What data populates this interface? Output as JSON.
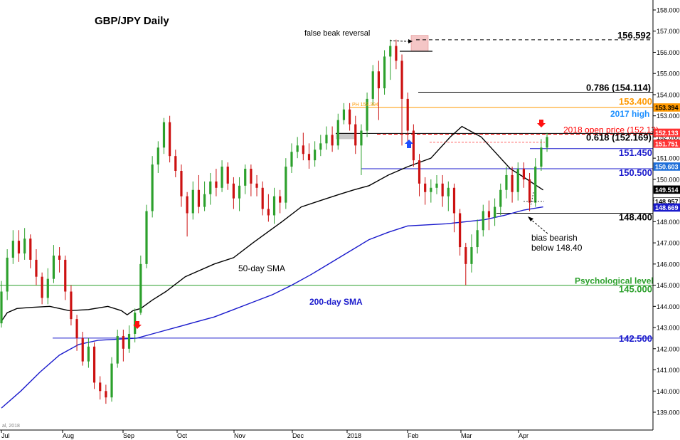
{
  "chart_data": {
    "type": "candlestick",
    "title": "GBP/JPY Daily",
    "x_tick_labels": [
      "Jul",
      "Aug",
      "Sep",
      "Oct",
      "Nov",
      "Dec",
      "2018",
      "Feb",
      "Mar",
      "Apr"
    ],
    "y_tick_labels": [
      "139.000",
      "140.000",
      "141.000",
      "142.000",
      "143.000",
      "144.000",
      "145.000",
      "146.000",
      "147.000",
      "148.000",
      "149.000",
      "150.000",
      "151.000",
      "152.000",
      "153.000",
      "154.000",
      "155.000",
      "156.000",
      "157.000",
      "158.000"
    ],
    "ylim": [
      138.0,
      158.4
    ],
    "series": [
      {
        "name": "50-day SMA",
        "color": "#000000",
        "points": [
          [
            0,
            143.3
          ],
          [
            3,
            143.7
          ],
          [
            8,
            143.9
          ],
          [
            15,
            143.95
          ],
          [
            25,
            144.0
          ],
          [
            35,
            143.8
          ],
          [
            45,
            143.85
          ],
          [
            55,
            144.0
          ],
          [
            62,
            143.8
          ],
          [
            65,
            143.6
          ],
          [
            68,
            143.8
          ],
          [
            72,
            143.9
          ],
          [
            78,
            144.3
          ],
          [
            85,
            144.7
          ],
          [
            95,
            145.4
          ],
          [
            110,
            146.0
          ],
          [
            120,
            146.3
          ],
          [
            130,
            147.0
          ],
          [
            145,
            148.0
          ],
          [
            155,
            148.7
          ],
          [
            165,
            149.0
          ],
          [
            175,
            149.3
          ],
          [
            182,
            149.5
          ],
          [
            190,
            149.7
          ],
          [
            200,
            150.2
          ],
          [
            210,
            150.6
          ],
          [
            222,
            151.0
          ],
          [
            232,
            152.0
          ],
          [
            238,
            152.5
          ],
          [
            242,
            152.3
          ],
          [
            248,
            152.0
          ],
          [
            255,
            151.3
          ],
          [
            263,
            150.5
          ],
          [
            270,
            150.1
          ],
          [
            280,
            149.5
          ]
        ]
      },
      {
        "name": "200-day SMA",
        "color": "#1a1acc",
        "points": [
          [
            0,
            139.2
          ],
          [
            10,
            140.0
          ],
          [
            20,
            140.9
          ],
          [
            30,
            141.7
          ],
          [
            40,
            142.2
          ],
          [
            50,
            142.4
          ],
          [
            60,
            142.45
          ],
          [
            70,
            142.5
          ],
          [
            80,
            142.75
          ],
          [
            90,
            143.0
          ],
          [
            100,
            143.25
          ],
          [
            110,
            143.5
          ],
          [
            120,
            143.85
          ],
          [
            130,
            144.2
          ],
          [
            140,
            144.55
          ],
          [
            150,
            145.0
          ],
          [
            160,
            145.5
          ],
          [
            170,
            146.05
          ],
          [
            180,
            146.6
          ],
          [
            190,
            147.15
          ],
          [
            200,
            147.5
          ],
          [
            210,
            147.8
          ],
          [
            220,
            147.85
          ],
          [
            230,
            147.9
          ],
          [
            240,
            148.0
          ],
          [
            250,
            148.1
          ],
          [
            260,
            148.3
          ],
          [
            270,
            148.55
          ],
          [
            280,
            148.7
          ]
        ]
      }
    ],
    "candles_approx": [
      [
        0,
        143.2,
        144.7,
        145.2,
        143.0
      ],
      [
        3,
        144.7,
        146.3,
        146.7,
        144.3
      ],
      [
        6,
        146.3,
        147.1,
        147.6,
        146.0
      ],
      [
        9,
        147.1,
        146.5,
        147.6,
        146.1
      ],
      [
        12,
        146.5,
        147.2,
        147.7,
        146.2
      ],
      [
        15,
        147.2,
        146.2,
        147.4,
        145.8
      ],
      [
        18,
        146.2,
        145.4,
        146.7,
        145.0
      ],
      [
        21,
        145.4,
        144.4,
        145.6,
        144.1
      ],
      [
        24,
        144.4,
        145.3,
        145.8,
        144.1
      ],
      [
        27,
        145.3,
        146.4,
        146.9,
        145.1
      ],
      [
        30,
        146.4,
        146.2,
        146.8,
        145.6
      ],
      [
        33,
        146.2,
        144.7,
        146.4,
        144.3
      ],
      [
        36,
        144.7,
        143.4,
        145.0,
        143.1
      ],
      [
        39,
        143.4,
        142.5,
        143.6,
        141.9
      ],
      [
        42,
        142.5,
        141.4,
        142.8,
        141.2
      ],
      [
        45,
        141.4,
        142.1,
        142.5,
        141.1
      ],
      [
        48,
        142.1,
        140.4,
        142.3,
        140.1
      ],
      [
        51,
        140.4,
        140.0,
        140.7,
        139.6
      ],
      [
        54,
        140.0,
        139.7,
        140.3,
        139.4
      ],
      [
        57,
        139.7,
        141.3,
        141.6,
        139.5
      ],
      [
        60,
        141.3,
        142.6,
        142.9,
        141.1
      ],
      [
        63,
        142.6,
        142.0,
        142.9,
        141.4
      ],
      [
        66,
        142.0,
        142.7,
        143.1,
        141.8
      ],
      [
        69,
        142.7,
        143.7,
        143.9,
        142.3
      ],
      [
        72,
        143.7,
        146.0,
        146.4,
        143.6
      ],
      [
        75,
        146.0,
        148.5,
        148.8,
        145.8
      ],
      [
        78,
        148.5,
        150.7,
        151.1,
        148.2
      ],
      [
        81,
        150.7,
        151.5,
        151.8,
        150.3
      ],
      [
        84,
        151.5,
        152.7,
        152.9,
        151.2
      ],
      [
        87,
        152.7,
        151.1,
        153.0,
        150.8
      ],
      [
        90,
        151.1,
        150.4,
        151.4,
        150.1
      ],
      [
        93,
        150.4,
        149.2,
        150.7,
        148.7
      ],
      [
        96,
        149.2,
        148.4,
        149.4,
        147.3
      ],
      [
        99,
        148.4,
        149.5,
        149.9,
        148.1
      ],
      [
        102,
        149.5,
        148.7,
        150.2,
        148.4
      ],
      [
        105,
        148.7,
        149.3,
        149.9,
        148.5
      ],
      [
        108,
        149.3,
        149.9,
        150.3,
        148.8
      ],
      [
        111,
        149.9,
        149.6,
        150.5,
        149.2
      ],
      [
        114,
        149.6,
        150.6,
        150.9,
        149.4
      ],
      [
        117,
        150.6,
        149.8,
        150.8,
        149.5
      ],
      [
        120,
        149.8,
        149.1,
        150.1,
        148.6
      ],
      [
        123,
        149.1,
        149.7,
        150.1,
        148.5
      ],
      [
        126,
        149.7,
        150.5,
        150.7,
        149.3
      ],
      [
        129,
        150.5,
        149.8,
        150.7,
        149.2
      ],
      [
        132,
        149.8,
        149.6,
        150.2,
        149.2
      ],
      [
        135,
        149.6,
        148.6,
        149.9,
        148.3
      ],
      [
        138,
        148.6,
        148.3,
        149.3,
        148.0
      ],
      [
        141,
        148.3,
        149.2,
        149.6,
        147.9
      ],
      [
        144,
        149.2,
        148.9,
        149.5,
        148.4
      ],
      [
        147,
        148.9,
        150.6,
        151.0,
        148.6
      ],
      [
        150,
        150.6,
        151.3,
        151.7,
        150.3
      ],
      [
        153,
        151.3,
        151.6,
        152.0,
        151.0
      ],
      [
        156,
        151.6,
        151.2,
        152.2,
        150.9
      ],
      [
        159,
        151.2,
        150.9,
        151.7,
        150.5
      ],
      [
        162,
        150.9,
        151.4,
        151.8,
        150.6
      ],
      [
        165,
        151.4,
        151.7,
        152.1,
        151.1
      ],
      [
        168,
        151.7,
        152.1,
        152.5,
        151.4
      ],
      [
        171,
        152.1,
        151.6,
        152.5,
        151.3
      ],
      [
        174,
        151.6,
        152.8,
        153.1,
        151.4
      ],
      [
        177,
        152.8,
        153.3,
        153.6,
        152.6
      ],
      [
        180,
        153.3,
        152.6,
        153.6,
        152.3
      ],
      [
        183,
        152.6,
        151.6,
        153.0,
        151.2
      ],
      [
        186,
        151.6,
        152.3,
        152.6,
        150.2
      ],
      [
        189,
        152.3,
        153.8,
        154.1,
        152.0
      ],
      [
        192,
        153.8,
        155.1,
        155.4,
        153.5
      ],
      [
        195,
        155.1,
        154.3,
        155.6,
        152.8
      ],
      [
        198,
        154.3,
        155.8,
        156.1,
        154.0
      ],
      [
        201,
        155.8,
        156.3,
        156.6,
        154.7
      ],
      [
        204,
        156.3,
        155.6,
        156.6,
        155.2
      ],
      [
        207,
        155.6,
        153.8,
        155.9,
        151.6
      ],
      [
        210,
        153.8,
        152.3,
        154.1,
        151.8
      ],
      [
        213,
        152.3,
        150.9,
        152.6,
        150.6
      ],
      [
        216,
        150.9,
        149.8,
        151.2,
        149.2
      ],
      [
        219,
        149.8,
        149.4,
        150.1,
        148.8
      ],
      [
        222,
        149.4,
        149.6,
        150.0,
        148.9
      ],
      [
        225,
        149.6,
        149.8,
        150.2,
        149.3
      ],
      [
        228,
        149.8,
        149.2,
        150.2,
        148.7
      ],
      [
        231,
        149.2,
        149.6,
        149.9,
        148.5
      ],
      [
        234,
        149.6,
        148.4,
        149.8,
        147.5
      ],
      [
        237,
        148.4,
        146.8,
        148.6,
        146.4
      ],
      [
        240,
        146.8,
        146.0,
        147.0,
        145.0
      ],
      [
        243,
        146.0,
        146.8,
        147.4,
        145.6
      ],
      [
        246,
        146.8,
        147.6,
        148.1,
        146.5
      ],
      [
        249,
        147.6,
        148.5,
        148.8,
        147.3
      ],
      [
        252,
        148.5,
        148.2,
        149.0,
        147.6
      ],
      [
        255,
        148.2,
        148.7,
        149.1,
        147.8
      ],
      [
        258,
        148.7,
        149.5,
        149.8,
        148.3
      ],
      [
        261,
        149.5,
        150.2,
        150.6,
        149.1
      ],
      [
        264,
        150.2,
        149.4,
        150.6,
        148.9
      ],
      [
        267,
        149.4,
        150.5,
        150.8,
        149.0
      ],
      [
        270,
        150.5,
        150.0,
        150.8,
        149.6
      ],
      [
        273,
        150.0,
        148.9,
        150.3,
        148.5
      ],
      [
        276,
        148.9,
        150.6,
        151.0,
        148.7
      ],
      [
        279,
        150.6,
        151.5,
        151.9,
        150.4
      ],
      [
        282,
        151.5,
        152.0,
        152.2,
        151.3
      ]
    ],
    "horizontal_levels": [
      {
        "value": 156.592,
        "label": "156.592",
        "color": "#000000",
        "style": "dashed"
      },
      {
        "value": 154.114,
        "label": "0.786 (154.114)",
        "color": "#000000",
        "style": "solid"
      },
      {
        "value": 153.4,
        "label": "153.400",
        "sublabel": "2017 high",
        "color": "#ff9900",
        "label_color": "#ff9900",
        "sublabel_color": "#1e90ff",
        "style": "solid"
      },
      {
        "value": 152.13,
        "label": "2018 open price (152.13)",
        "color": "#ff0000",
        "style": "dashed"
      },
      {
        "value": 152.169,
        "label": "0.618 (152.169)",
        "color": "#000000",
        "style": "solid"
      },
      {
        "value": 151.45,
        "label": "151.450",
        "color": "#1a1acc",
        "style": "solid"
      },
      {
        "value": 150.5,
        "label": "150.500",
        "color": "#1a1acc",
        "style": "solid"
      },
      {
        "value": 148.4,
        "label": "148.400",
        "color": "#000000",
        "style": "solid"
      },
      {
        "value": 145.0,
        "label": "145.000",
        "sublabel": "Psychological level",
        "color": "#2ca02c",
        "style": "solid"
      },
      {
        "value": 142.5,
        "label": "142.500",
        "color": "#1a1acc",
        "style": "solid"
      }
    ],
    "price_tags": [
      {
        "value": 153.394,
        "label": "153.394",
        "bg": "#ff9900",
        "fg": "#000000"
      },
      {
        "value": 152.133,
        "label": "152.133",
        "bg": "#ff3333",
        "fg": "#ffffff"
      },
      {
        "value": 151.751,
        "label": "151.751",
        "bg": "#ff3333",
        "fg": "#ffffff"
      },
      {
        "value": 150.603,
        "label": "150.603",
        "bg": "#1e6fd9",
        "fg": "#ffffff"
      },
      {
        "value": 149.514,
        "label": "149.514",
        "bg": "#000000",
        "fg": "#ffffff"
      },
      {
        "value": 148.957,
        "label": "148.957",
        "bg": "#ffffff",
        "fg": "#000000"
      },
      {
        "value": 148.669,
        "label": "148.669",
        "bg": "#1a1acc",
        "fg": "#ffffff"
      }
    ],
    "annotations": [
      {
        "text": "false beak reversal",
        "color": "#000000"
      },
      {
        "text": "50-day SMA",
        "color": "#000000"
      },
      {
        "text": "200-day SMA",
        "color": "#1a1acc"
      },
      {
        "text": "bias bearish",
        "color": "#000000"
      },
      {
        "text": "below 148.40",
        "color": "#000000"
      },
      {
        "text": "PH 153.394",
        "color": "#ff9900"
      }
    ],
    "footer_text": "al, 2018",
    "colors": {
      "bull_candle": "#2ca02c",
      "bear_candle": "#cc1111",
      "arrow_down": "#ff1111",
      "arrow_up": "#1e4fff",
      "box_pink": "#f4c6c6",
      "box_grey": "#c8c8c8"
    },
    "grid": false
  }
}
